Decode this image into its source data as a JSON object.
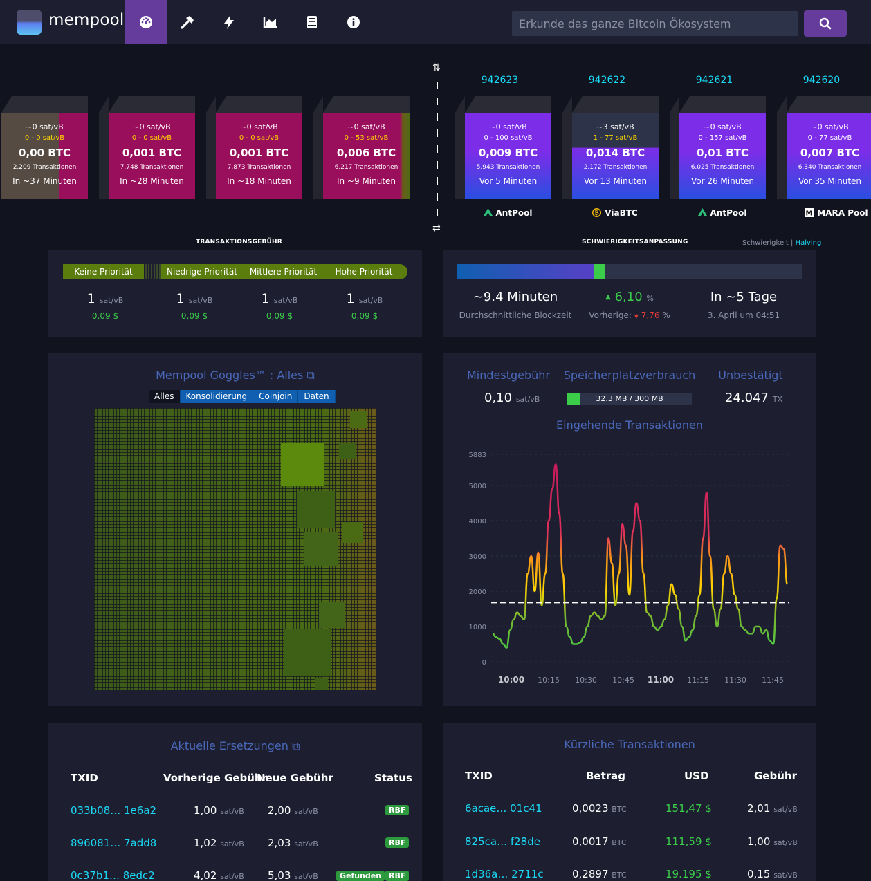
{
  "header": {
    "brand": "mempool",
    "nav": [
      "dashboard-icon",
      "mining-icon",
      "lightning-icon",
      "graphs-icon",
      "docs-icon",
      "about-icon"
    ],
    "search_placeholder": "Erkunde das ganze Bitcoin Ökosystem"
  },
  "mempool_blocks": [
    {
      "fee": "~0 sat/vB",
      "range": "0 - 0 sat/vB",
      "btc": "0,00 BTC",
      "tx": "2.209 Transaktionen",
      "time": "In ~37 Minuten"
    },
    {
      "fee": "~0 sat/vB",
      "range": "0 - 0 sat/vB",
      "btc": "0,001 BTC",
      "tx": "7.748 Transaktionen",
      "time": "In ~28 Minuten"
    },
    {
      "fee": "~0 sat/vB",
      "range": "0 - 0 sat/vB",
      "btc": "0,001 BTC",
      "tx": "7.873 Transaktionen",
      "time": "In ~18 Minuten"
    },
    {
      "fee": "~0 sat/vB",
      "range": "0 - 53 sat/vB",
      "btc": "0,006 BTC",
      "tx": "6.217 Transaktionen",
      "time": "In ~9 Minuten"
    }
  ],
  "blocks": [
    {
      "height": "942623",
      "fee": "~0 sat/vB",
      "range": "0 - 100 sat/vB",
      "btc": "0,009 BTC",
      "tx": "5.943 Transaktionen",
      "time": "Vor 5 Minuten",
      "pool": "AntPool",
      "pool_icon": "antpool-icon"
    },
    {
      "height": "942622",
      "fee": "~3 sat/vB",
      "range": "1 - 77 sat/vB",
      "btc": "0,014 BTC",
      "tx": "2.172 Transaktionen",
      "time": "Vor 13 Minuten",
      "pool": "ViaBTC",
      "pool_icon": "viabtc-icon"
    },
    {
      "height": "942621",
      "fee": "~0 sat/vB",
      "range": "0 - 157 sat/vB",
      "btc": "0,01 BTC",
      "tx": "6.025 Transaktionen",
      "time": "Vor 26 Minuten",
      "pool": "AntPool",
      "pool_icon": "antpool-icon"
    },
    {
      "height": "942620",
      "fee": "~0 sat/vB",
      "range": "0 - 77 sat/vB",
      "btc": "0,007 BTC",
      "tx": "6.340 Transaktionen",
      "time": "Vor 35 Minuten",
      "pool": "MARA Pool",
      "pool_icon": "mara-icon"
    }
  ],
  "fees": {
    "label": "TRANSAKTIONSGEBÜHR",
    "priorities": [
      "Keine Priorität",
      "Niedrige Priorität",
      "Mittlere Priorität",
      "Hohe Priorität"
    ],
    "values": [
      "1",
      "1",
      "1",
      "1"
    ],
    "unit": "sat/vB",
    "usd": [
      "0,09 $",
      "0,09 $",
      "0,09 $",
      "0,09 $"
    ]
  },
  "difficulty": {
    "label": "SCHWIERIGKEITSANPASSUNG",
    "links": [
      "Schwierigkeit",
      "Halving"
    ],
    "progress": 0.43,
    "blocktime": "~9.4 Minuten",
    "blocktime_label": "Durchschnittliche Blockzeit",
    "change": "6,10",
    "change_unit": "%",
    "previous_label": "Vorherige:",
    "previous": "7,76",
    "previous_unit": "%",
    "eta": "In ~5 Tage",
    "eta_date": "3. April um 04:51"
  },
  "goggles": {
    "title": "Mempool Goggles™ : Alles",
    "tabs": [
      "Alles",
      "Konsolidierung",
      "Coinjoin",
      "Daten"
    ]
  },
  "stats": {
    "min_fee_label": "Mindestgebühr",
    "min_fee": "0,10",
    "min_fee_unit": "sat/vB",
    "memory_label": "Speicherplatzverbrauch",
    "memory": "32.3 MB / 300 MB",
    "memory_fraction": 0.108,
    "unconfirmed_label": "Unbestätigt",
    "unconfirmed": "24.047",
    "unconfirmed_unit": "TX"
  },
  "chart_data": {
    "type": "line",
    "title": "Eingehende Transaktionen",
    "x_ticks": [
      "10:00",
      "10:15",
      "10:30",
      "10:45",
      "11:00",
      "11:15",
      "11:30",
      "11:45"
    ],
    "y_ticks": [
      "0",
      "1000",
      "2000",
      "3000",
      "4000",
      "5000",
      "5883"
    ],
    "ylim": [
      0,
      5883
    ],
    "reference_line": 1680,
    "series": [
      {
        "values": [
          800,
          700,
          650,
          500,
          400,
          900,
          1200,
          1400,
          1300,
          1200,
          2500,
          3000,
          2000,
          3100,
          1600,
          2500,
          4000,
          4900,
          5600,
          4200,
          2500,
          1000,
          700,
          500,
          500,
          550,
          700,
          1000,
          1300,
          1400,
          1300,
          1200,
          1300,
          3500,
          2800,
          1600,
          2500,
          3900,
          3300,
          1900,
          3700,
          4500,
          4000,
          2500,
          1400,
          1300,
          1000,
          900,
          1000,
          1200,
          1600,
          2200,
          1900,
          1500,
          1000,
          600,
          700,
          900,
          1300,
          1900,
          3500,
          4800,
          3000,
          1500,
          1000,
          1500,
          2500,
          3000,
          2500,
          1900,
          1500,
          1000,
          900,
          800,
          800,
          1000,
          1000,
          800,
          900,
          600,
          500,
          1800,
          3300,
          3200,
          2200
        ]
      }
    ]
  },
  "replacements": {
    "title": "Aktuelle Ersetzungen",
    "headers": [
      "TXID",
      "Vorherige Gebühr",
      "Neue Gebühr",
      "Status"
    ],
    "rows": [
      {
        "txid": "033b08… 1e6a2",
        "prev": "1,00",
        "new": "2,00",
        "badges": [
          "RBF"
        ]
      },
      {
        "txid": "896081… 7add8",
        "prev": "1,02",
        "new": "2,03",
        "badges": [
          "RBF"
        ]
      },
      {
        "txid": "0c37b1… 8edc2",
        "prev": "4,02",
        "new": "5,03",
        "badges": [
          "Gefunden",
          "RBF"
        ]
      }
    ],
    "unit": "sat/vB"
  },
  "recent": {
    "title": "Kürzliche Transaktionen",
    "headers": [
      "TXID",
      "Betrag",
      "USD",
      "Gebühr"
    ],
    "rows": [
      {
        "txid": "6acae… 01c41",
        "amount": "0,0023",
        "usd": "151,47 $",
        "fee": "2,01"
      },
      {
        "txid": "825ca… f28de",
        "amount": "0,0017",
        "usd": "111,59 $",
        "fee": "1,00"
      },
      {
        "txid": "1d36a… 2711c",
        "amount": "0,2897",
        "usd": "19.195 $",
        "fee": "0,15"
      }
    ],
    "amount_unit": "BTC",
    "fee_unit": "sat/vB"
  }
}
